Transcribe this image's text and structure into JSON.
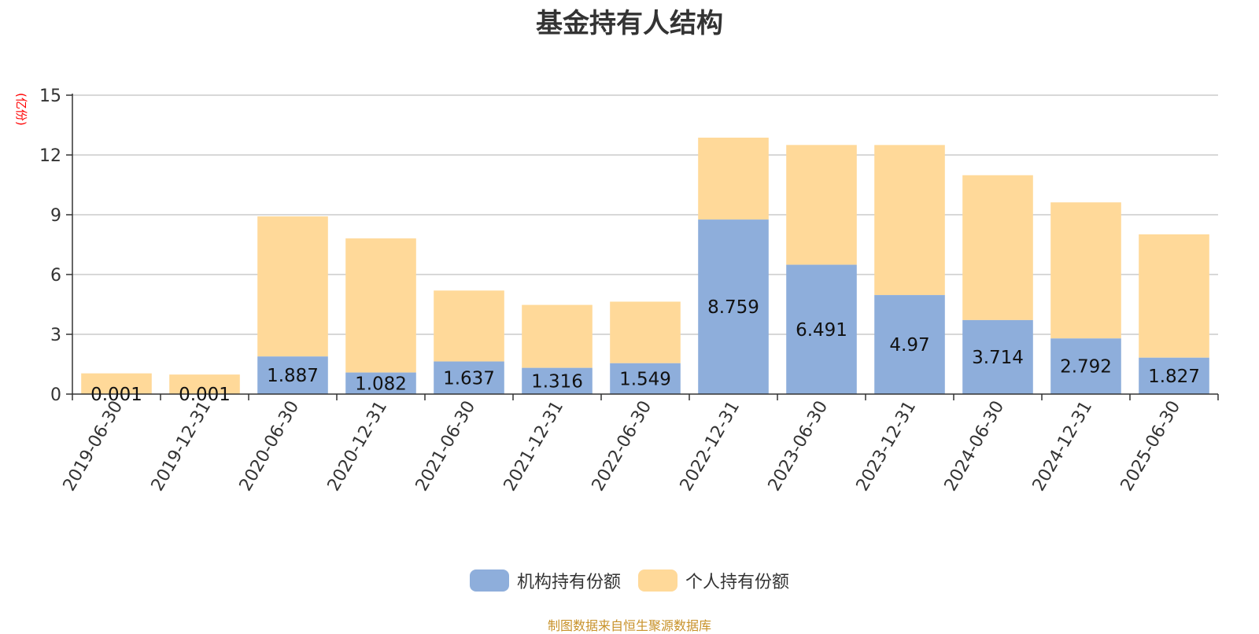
{
  "chart_data": {
    "type": "bar",
    "stacked": true,
    "title": "基金持有人结构",
    "ylabel": "(亿份)",
    "ylim": [
      0,
      15
    ],
    "yticks": [
      0,
      3,
      6,
      9,
      12,
      15
    ],
    "grid": true,
    "legend_position": "bottom",
    "categories": [
      "2019-06-30",
      "2019-12-31",
      "2020-06-30",
      "2020-12-31",
      "2021-06-30",
      "2021-12-31",
      "2022-06-30",
      "2022-12-31",
      "2023-06-30",
      "2023-12-31",
      "2024-06-30",
      "2024-12-31",
      "2025-06-30"
    ],
    "series": [
      {
        "name": "机构持有份额",
        "color": "#8eaedb",
        "values": [
          0.001,
          0.001,
          1.887,
          1.082,
          1.637,
          1.316,
          1.549,
          8.759,
          6.491,
          4.97,
          3.714,
          2.792,
          1.827
        ],
        "labels": [
          "0.001",
          "0.001",
          "1.887",
          "1.082",
          "1.637",
          "1.316",
          "1.549",
          "8.759",
          "6.491",
          "4.97",
          "3.714",
          "2.792",
          "1.827"
        ]
      },
      {
        "name": "个人持有份额",
        "color": "#ffd999",
        "values": [
          1.04,
          0.98,
          7.03,
          6.73,
          3.56,
          3.16,
          3.09,
          4.11,
          6.01,
          7.53,
          7.27,
          6.83,
          6.19
        ]
      }
    ]
  },
  "footer": {
    "source": "制图数据来自恒生聚源数据库"
  }
}
